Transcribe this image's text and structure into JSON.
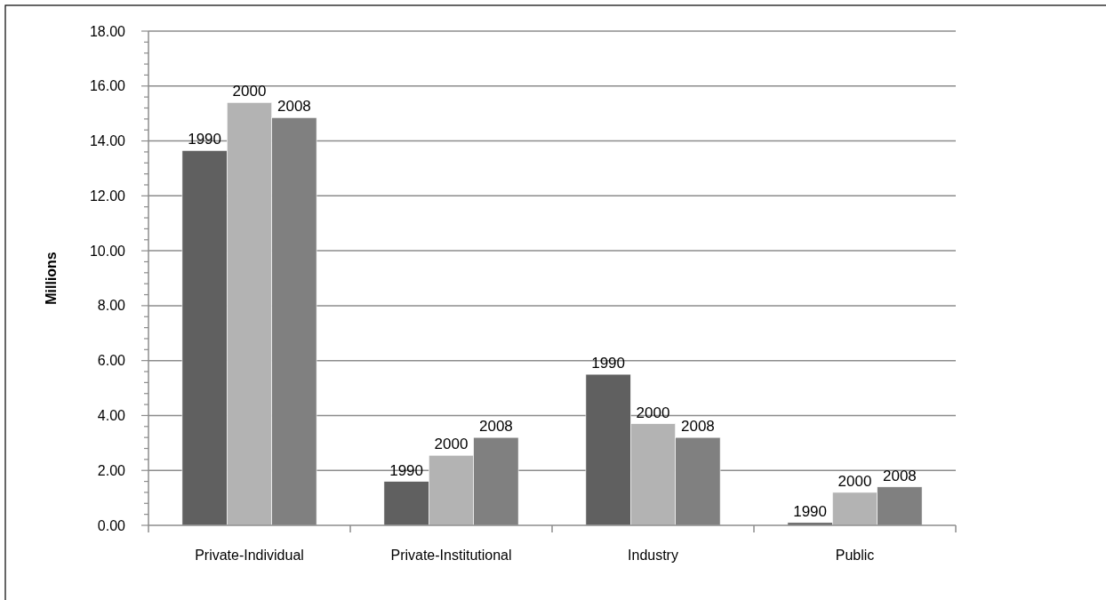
{
  "chart_data": {
    "type": "bar",
    "ylabel": "Millions",
    "categories": [
      "Private-Individual",
      "Private-Institutional",
      "Industry",
      "Public"
    ],
    "series": [
      {
        "name": "1990",
        "color": "#606060",
        "values": [
          13.65,
          1.6,
          5.5,
          0.1
        ]
      },
      {
        "name": "2000",
        "color": "#b3b3b3",
        "values": [
          15.4,
          2.55,
          3.7,
          1.2
        ]
      },
      {
        "name": "2008",
        "color": "#808080",
        "values": [
          14.85,
          3.2,
          3.2,
          1.4
        ]
      }
    ],
    "ylim": [
      0,
      18
    ],
    "yticks": [
      {
        "value": 0,
        "label": "0.00"
      },
      {
        "value": 0.4,
        "label": null
      },
      {
        "value": 0.8,
        "label": null
      },
      {
        "value": 1.2,
        "label": null
      },
      {
        "value": 1.6,
        "label": null
      },
      {
        "value": 2,
        "label": "2.00"
      },
      {
        "value": 2.4,
        "label": null
      },
      {
        "value": 2.8,
        "label": null
      },
      {
        "value": 3.2,
        "label": null
      },
      {
        "value": 3.6,
        "label": null
      },
      {
        "value": 4,
        "label": "4.00"
      },
      {
        "value": 4.4,
        "label": null
      },
      {
        "value": 4.8,
        "label": null
      },
      {
        "value": 5.2,
        "label": null
      },
      {
        "value": 5.6,
        "label": null
      },
      {
        "value": 6,
        "label": "6.00"
      },
      {
        "value": 6.4,
        "label": null
      },
      {
        "value": 6.8,
        "label": null
      },
      {
        "value": 7.2,
        "label": null
      },
      {
        "value": 7.6,
        "label": null
      },
      {
        "value": 8,
        "label": "8.00"
      },
      {
        "value": 8.4,
        "label": null
      },
      {
        "value": 8.8,
        "label": null
      },
      {
        "value": 9.2,
        "label": null
      },
      {
        "value": 9.6,
        "label": null
      },
      {
        "value": 10,
        "label": "10.00"
      },
      {
        "value": 10.4,
        "label": null
      },
      {
        "value": 10.8,
        "label": null
      },
      {
        "value": 11.2,
        "label": null
      },
      {
        "value": 11.6,
        "label": null
      },
      {
        "value": 12,
        "label": "12.00"
      },
      {
        "value": 12.4,
        "label": null
      },
      {
        "value": 12.8,
        "label": null
      },
      {
        "value": 13.2,
        "label": null
      },
      {
        "value": 13.6,
        "label": null
      },
      {
        "value": 14,
        "label": "14.00"
      },
      {
        "value": 14.4,
        "label": null
      },
      {
        "value": 14.8,
        "label": null
      },
      {
        "value": 15.2,
        "label": null
      },
      {
        "value": 15.6,
        "label": null
      },
      {
        "value": 16,
        "label": "16.00"
      },
      {
        "value": 16.4,
        "label": null
      },
      {
        "value": 16.8,
        "label": null
      },
      {
        "value": 17.2,
        "label": null
      },
      {
        "value": 17.6,
        "label": null
      },
      {
        "value": 18,
        "label": "18.00"
      }
    ],
    "grid": "y"
  }
}
